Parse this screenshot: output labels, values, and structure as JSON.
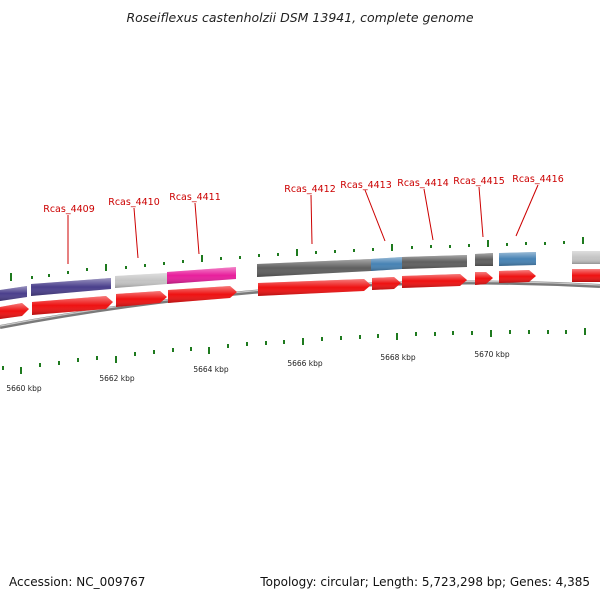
{
  "title": "Roseiflexus castenholzii DSM 13941, complete genome",
  "footer": {
    "accession": "Accession: NC_009767",
    "summary": "Topology: circular; Length: 5,723,298 bp; Genes: 4,385"
  },
  "colors": {
    "backbone": "#8a8a8a",
    "cds": "#ee1111",
    "label": "#cc0000",
    "tick": "#1e7a1e",
    "purple": "#4a3f8c",
    "light_gray": "#c4c4c4",
    "magenta": "#e81e9c",
    "dark_gray": "#5f5f5f",
    "steel_blue": "#4682b4"
  },
  "genes": [
    {
      "name": "Rcas_4409"
    },
    {
      "name": "Rcas_4410"
    },
    {
      "name": "Rcas_4411"
    },
    {
      "name": "Rcas_4412"
    },
    {
      "name": "Rcas_4413"
    },
    {
      "name": "Rcas_4414"
    },
    {
      "name": "Rcas_4415"
    },
    {
      "name": "Rcas_4416"
    }
  ],
  "scale_labels": [
    "5660 kbp",
    "5662 kbp",
    "5664 kbp",
    "5666 kbp",
    "5668 kbp",
    "5670 kbp"
  ]
}
